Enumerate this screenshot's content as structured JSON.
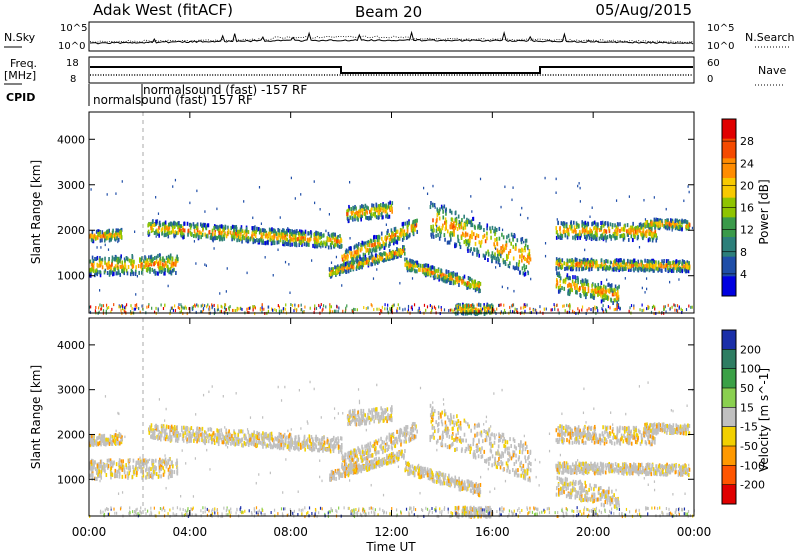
{
  "header": {
    "station": "Adak West (fitACF)",
    "beam": "Beam 20",
    "date": "05/Aug/2015"
  },
  "sky_panel": {
    "left_label": "N.Sky",
    "right_label": "N.Search",
    "left_ticks": [
      "10^5",
      "10^0"
    ],
    "right_ticks": [
      "10^5",
      "10^0"
    ]
  },
  "freq_panel": {
    "left_label_1": "Freq.",
    "left_label_2": "[MHz]",
    "right_label": "Nave",
    "left_ticks": [
      "18",
      "8"
    ],
    "right_ticks": [
      "60",
      "0"
    ]
  },
  "cpid": {
    "label": "CPID",
    "entry_1": "normalsound (fast) 157 RF",
    "entry_2": "normalsound (fast) -157 RF"
  },
  "chart_data": [
    {
      "type": "heatmap",
      "name": "power",
      "ylabel": "Slant Range [km]",
      "xlabel": "",
      "x_ticks": [
        "00:00",
        "04:00",
        "08:00",
        "12:00",
        "16:00",
        "20:00",
        "00:00"
      ],
      "y_ticks": [
        "1000",
        "2000",
        "3000",
        "4000"
      ],
      "ylim": [
        180,
        4600
      ],
      "xlim_hours": [
        0,
        24
      ],
      "colorbar_label": "Power [dB]",
      "colorbar_ticks": [
        "28",
        "24",
        "20",
        "16",
        "12",
        "8",
        "4"
      ],
      "colorbar_colors": [
        "#e00000",
        "#f54a00",
        "#ff8c00",
        "#f7c900",
        "#8fc400",
        "#3a9a4a",
        "#2c7f7a",
        "#1f4ea8",
        "#0000e0"
      ]
    },
    {
      "type": "heatmap",
      "name": "velocity",
      "ylabel": "Slant Range [km]",
      "xlabel": "Time UT",
      "x_ticks": [
        "00:00",
        "04:00",
        "08:00",
        "12:00",
        "16:00",
        "20:00",
        "00:00"
      ],
      "y_ticks": [
        "1000",
        "2000",
        "3000",
        "4000"
      ],
      "ylim": [
        180,
        4600
      ],
      "xlim_hours": [
        0,
        24
      ],
      "colorbar_label": "Velocity [m s^-1]",
      "colorbar_ticks": [
        "200",
        "100",
        "50",
        "15",
        "-15",
        "-50",
        "-100",
        "-200"
      ],
      "colorbar_colors": [
        "#1a2fa8",
        "#2e7d62",
        "#3aa046",
        "#8ad050",
        "#c0c0c0",
        "#f2d000",
        "#ff9900",
        "#ff5500",
        "#e00000"
      ]
    }
  ]
}
